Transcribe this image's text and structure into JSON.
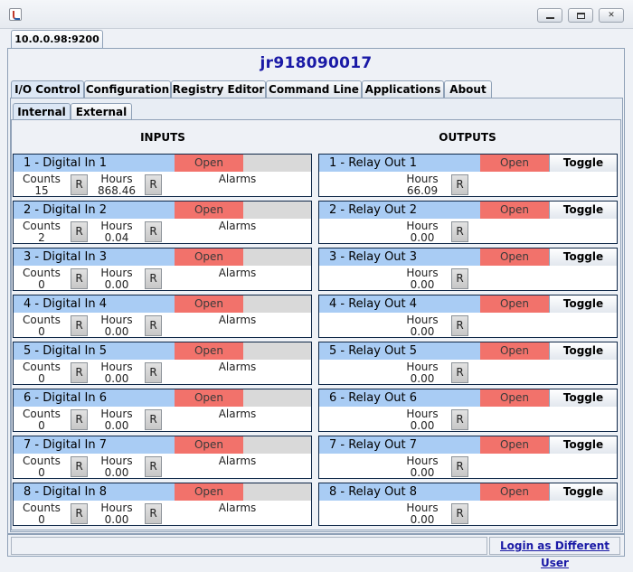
{
  "window": {
    "minimize_glyph": "",
    "maximize_glyph": "",
    "close_glyph": "✕"
  },
  "server_tab": "10.0.0.98:9200",
  "device_name": "jr918090017",
  "tabs": [
    {
      "label": "I/O Control"
    },
    {
      "label": "Configuration"
    },
    {
      "label": "Registry Editor"
    },
    {
      "label": "Command Line"
    },
    {
      "label": "Applications"
    },
    {
      "label": "About"
    }
  ],
  "subtabs": [
    {
      "label": "Internal"
    },
    {
      "label": "External"
    }
  ],
  "inputs_heading": "INPUTS",
  "outputs_heading": "OUTPUTS",
  "inputs": [
    {
      "name": "1 - Digital In 1",
      "state": "Open",
      "counts_label": "Counts",
      "counts": "15",
      "hours_label": "Hours",
      "hours": "868.46",
      "reset": "R",
      "alarms": "Alarms"
    },
    {
      "name": "2 - Digital In 2",
      "state": "Open",
      "counts_label": "Counts",
      "counts": "2",
      "hours_label": "Hours",
      "hours": "0.04",
      "reset": "R",
      "alarms": "Alarms"
    },
    {
      "name": "3 - Digital In 3",
      "state": "Open",
      "counts_label": "Counts",
      "counts": "0",
      "hours_label": "Hours",
      "hours": "0.00",
      "reset": "R",
      "alarms": "Alarms"
    },
    {
      "name": "4 - Digital In 4",
      "state": "Open",
      "counts_label": "Counts",
      "counts": "0",
      "hours_label": "Hours",
      "hours": "0.00",
      "reset": "R",
      "alarms": "Alarms"
    },
    {
      "name": "5 - Digital In 5",
      "state": "Open",
      "counts_label": "Counts",
      "counts": "0",
      "hours_label": "Hours",
      "hours": "0.00",
      "reset": "R",
      "alarms": "Alarms"
    },
    {
      "name": "6 - Digital In 6",
      "state": "Open",
      "counts_label": "Counts",
      "counts": "0",
      "hours_label": "Hours",
      "hours": "0.00",
      "reset": "R",
      "alarms": "Alarms"
    },
    {
      "name": "7 - Digital In 7",
      "state": "Open",
      "counts_label": "Counts",
      "counts": "0",
      "hours_label": "Hours",
      "hours": "0.00",
      "reset": "R",
      "alarms": "Alarms"
    },
    {
      "name": "8 - Digital In 8",
      "state": "Open",
      "counts_label": "Counts",
      "counts": "0",
      "hours_label": "Hours",
      "hours": "0.00",
      "reset": "R",
      "alarms": "Alarms"
    }
  ],
  "outputs": [
    {
      "name": "1 - Relay Out 1",
      "state": "Open",
      "toggle": "Toggle",
      "hours_label": "Hours",
      "hours": "66.09",
      "reset": "R"
    },
    {
      "name": "2 - Relay Out 2",
      "state": "Open",
      "toggle": "Toggle",
      "hours_label": "Hours",
      "hours": "0.00",
      "reset": "R"
    },
    {
      "name": "3 - Relay Out 3",
      "state": "Open",
      "toggle": "Toggle",
      "hours_label": "Hours",
      "hours": "0.00",
      "reset": "R"
    },
    {
      "name": "4 - Relay Out 4",
      "state": "Open",
      "toggle": "Toggle",
      "hours_label": "Hours",
      "hours": "0.00",
      "reset": "R"
    },
    {
      "name": "5 - Relay Out 5",
      "state": "Open",
      "toggle": "Toggle",
      "hours_label": "Hours",
      "hours": "0.00",
      "reset": "R"
    },
    {
      "name": "6 - Relay Out 6",
      "state": "Open",
      "toggle": "Toggle",
      "hours_label": "Hours",
      "hours": "0.00",
      "reset": "R"
    },
    {
      "name": "7 - Relay Out 7",
      "state": "Open",
      "toggle": "Toggle",
      "hours_label": "Hours",
      "hours": "0.00",
      "reset": "R"
    },
    {
      "name": "8 - Relay Out 8",
      "state": "Open",
      "toggle": "Toggle",
      "hours_label": "Hours",
      "hours": "0.00",
      "reset": "R"
    }
  ],
  "status_text": "",
  "login_link": "Login as Different User"
}
